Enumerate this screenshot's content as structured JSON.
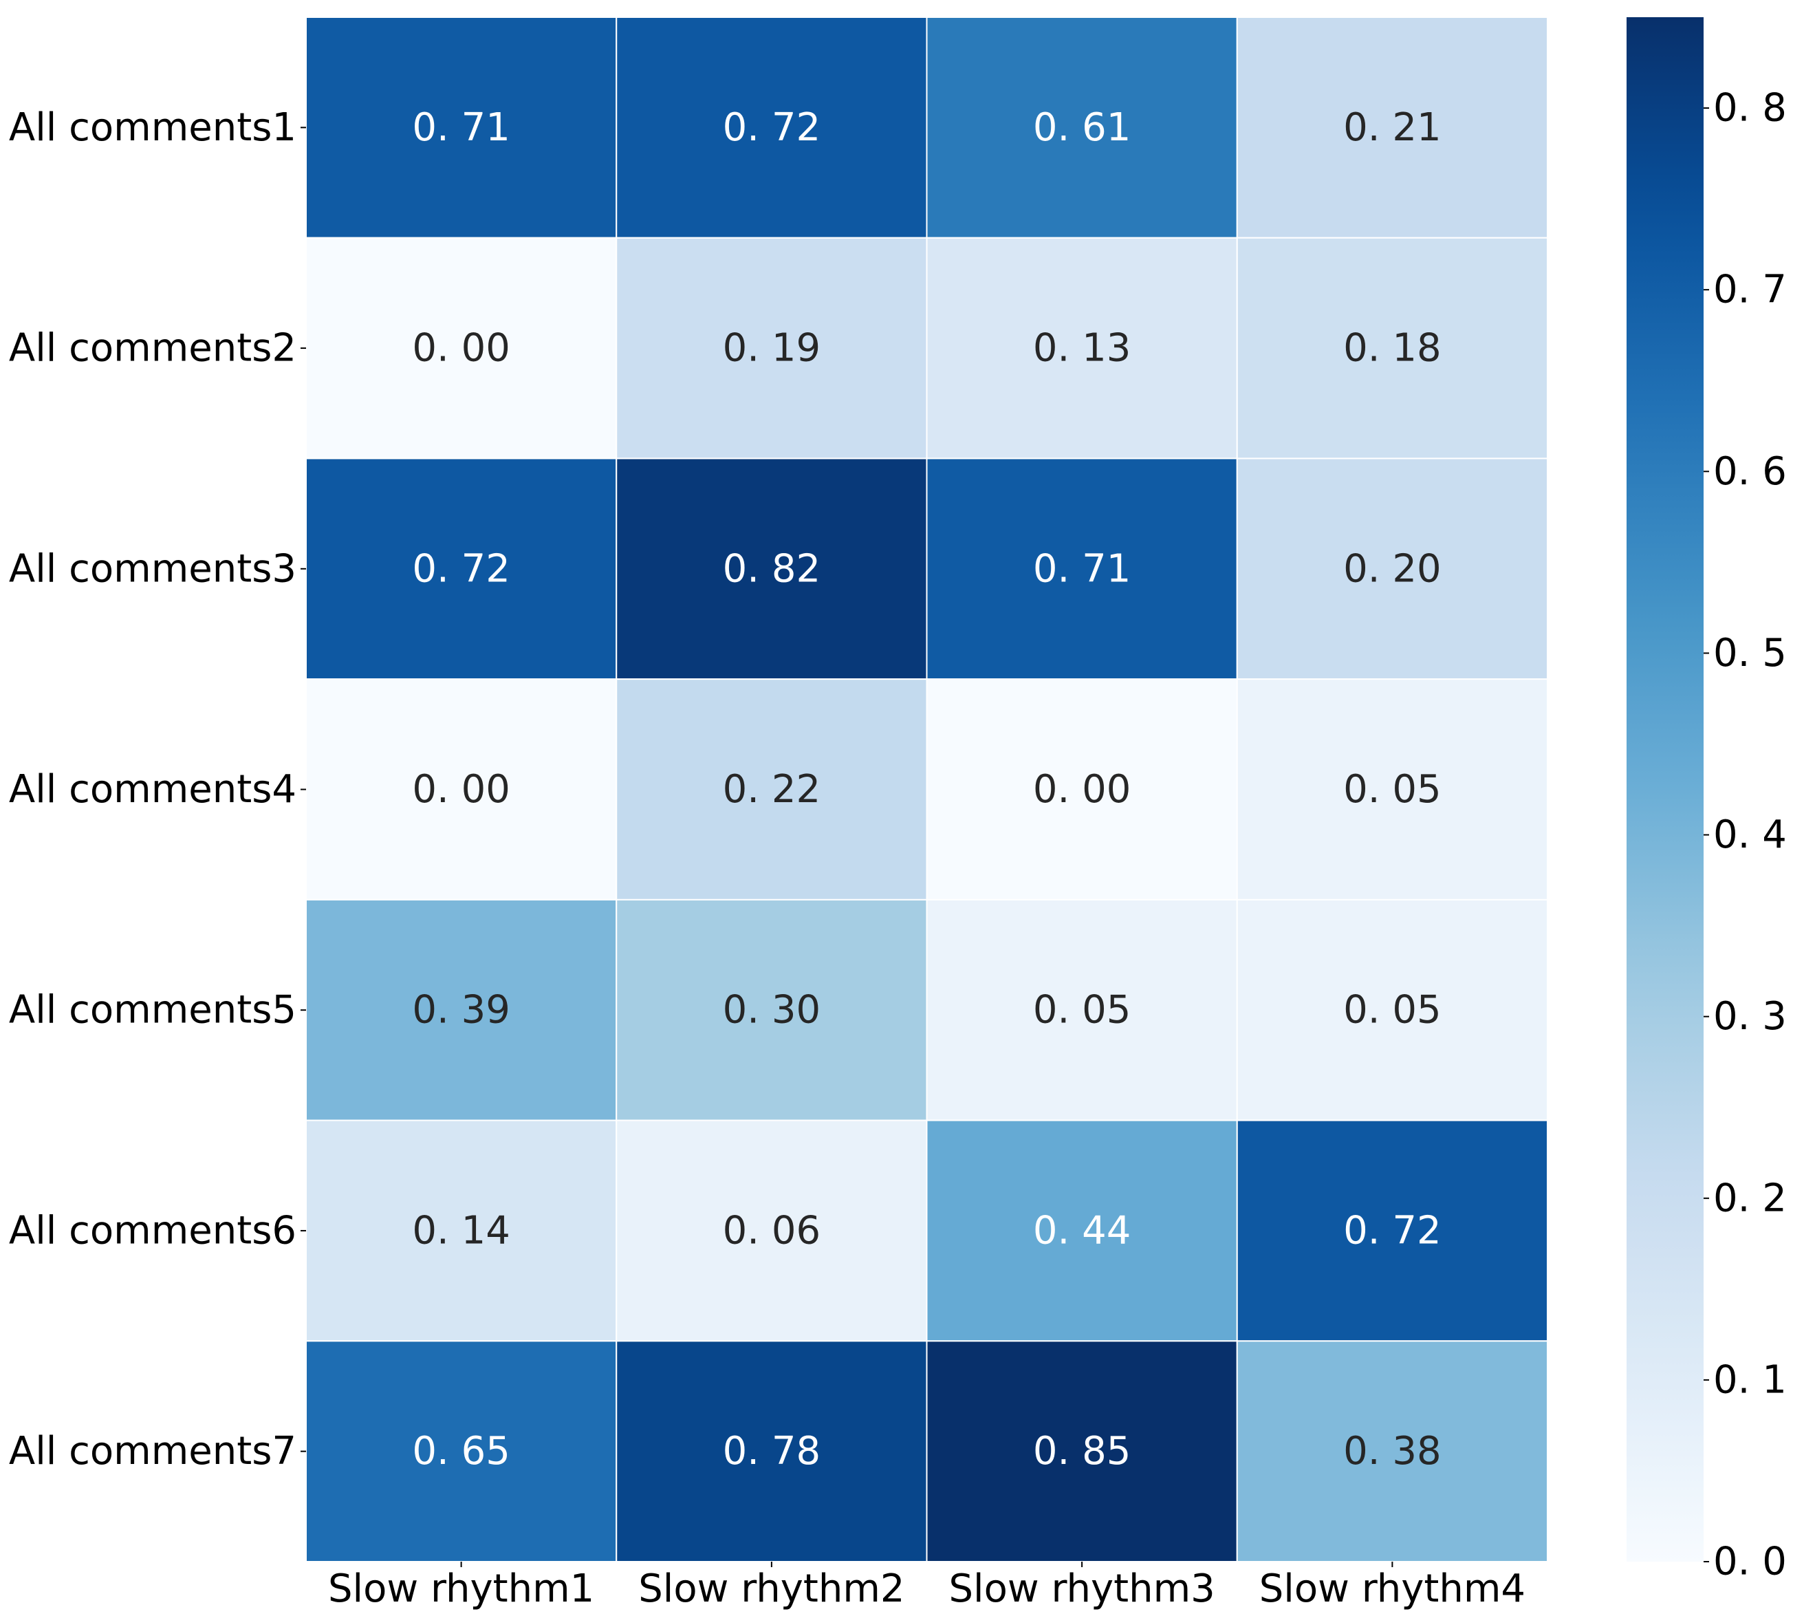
{
  "chart_data": {
    "type": "heatmap",
    "title": "",
    "xlabel": "",
    "ylabel": "",
    "rows": [
      "All comments1",
      "All comments2",
      "All comments3",
      "All comments4",
      "All comments5",
      "All comments6",
      "All comments7"
    ],
    "columns": [
      "Slow rhythm1",
      "Slow rhythm2",
      "Slow rhythm3",
      "Slow rhythm4"
    ],
    "values": [
      [
        0.71,
        0.72,
        0.61,
        0.21
      ],
      [
        0.0,
        0.19,
        0.13,
        0.18
      ],
      [
        0.72,
        0.82,
        0.71,
        0.2
      ],
      [
        0.0,
        0.22,
        0.0,
        0.05
      ],
      [
        0.39,
        0.3,
        0.05,
        0.05
      ],
      [
        0.14,
        0.06,
        0.44,
        0.72
      ],
      [
        0.65,
        0.78,
        0.85,
        0.38
      ]
    ],
    "labels": [
      [
        "0. 71",
        "0. 72",
        "0. 61",
        "0. 21"
      ],
      [
        "0. 00",
        "0. 19",
        "0. 13",
        "0. 18"
      ],
      [
        "0. 72",
        "0. 82",
        "0. 71",
        "0. 20"
      ],
      [
        "0. 00",
        "0. 22",
        "0. 00",
        "0. 05"
      ],
      [
        "0. 39",
        "0. 30",
        "0. 05",
        "0. 05"
      ],
      [
        "0. 14",
        "0. 06",
        "0. 44",
        "0. 72"
      ],
      [
        "0. 65",
        "0. 78",
        "0. 85",
        "0. 38"
      ]
    ],
    "colormap": "Blues",
    "vmin": 0.0,
    "vmax": 0.85,
    "colorbar": {
      "ticks": [
        0.0,
        0.1,
        0.2,
        0.3,
        0.4,
        0.5,
        0.6,
        0.7,
        0.8
      ],
      "tick_labels": [
        "0. 0",
        "0. 1",
        "0. 2",
        "0. 3",
        "0. 4",
        "0. 5",
        "0. 6",
        "0. 7",
        "0. 8"
      ]
    },
    "cell_border_color": "#ffffff",
    "text_dark": "#262626",
    "text_light": "#ffffff"
  }
}
